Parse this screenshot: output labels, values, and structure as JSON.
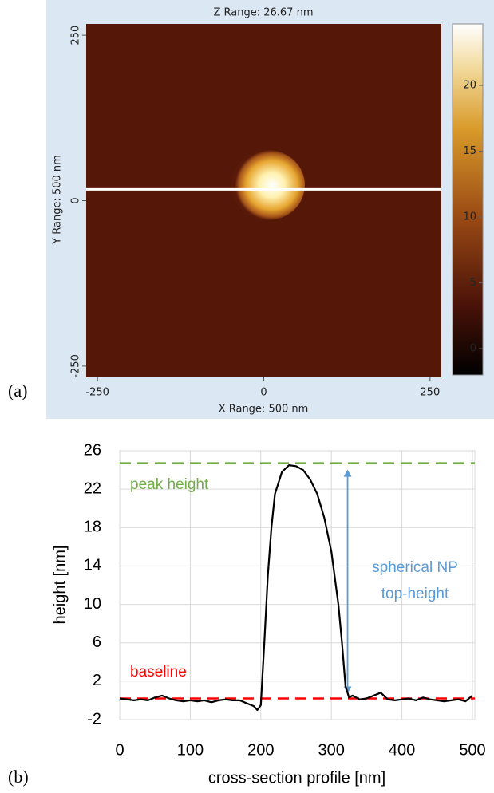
{
  "chart_data": [
    {
      "type": "image",
      "label": "(a)",
      "title": "Z Range:  26.67 nm",
      "xlabel": "X Range: 500 nm",
      "ylabel": "Y Range: 500 nm",
      "xlim": [
        -267,
        267
      ],
      "xticks": [
        -250,
        0,
        250
      ],
      "ylim": [
        -267,
        267
      ],
      "yticks": [
        -250,
        0,
        250
      ],
      "scan_line_y": 17,
      "colorbar": {
        "lim": [
          -2,
          24.67
        ],
        "ticks": [
          0,
          5,
          10,
          15,
          20
        ]
      }
    },
    {
      "type": "line",
      "label": "(b)",
      "xlabel": "cross-section profile [nm]",
      "ylabel": "height [nm]",
      "xlim": [
        0,
        500
      ],
      "xticks": [
        0,
        100,
        200,
        300,
        400,
        500
      ],
      "ylim": [
        -2,
        26
      ],
      "yticks": [
        -2,
        2,
        6,
        10,
        14,
        18,
        22,
        26
      ],
      "grid": true,
      "series": [
        {
          "name": "profile",
          "color": "#000000",
          "x": [
            0,
            10,
            20,
            30,
            40,
            50,
            60,
            70,
            80,
            90,
            100,
            110,
            120,
            130,
            140,
            150,
            160,
            170,
            180,
            190,
            195,
            200,
            205,
            210,
            215,
            220,
            230,
            240,
            250,
            260,
            270,
            280,
            290,
            300,
            310,
            315,
            320,
            325,
            330,
            340,
            350,
            360,
            370,
            380,
            390,
            400,
            410,
            420,
            430,
            440,
            450,
            460,
            470,
            480,
            490,
            500
          ],
          "values": [
            0.2,
            0.1,
            0,
            0.1,
            0,
            0.3,
            0.5,
            0.2,
            0,
            -0.1,
            0,
            -0.1,
            0,
            -0.2,
            0,
            0.1,
            0,
            0,
            -0.3,
            -0.6,
            -1,
            -0.5,
            6,
            13,
            18,
            21.5,
            23.8,
            24.5,
            24.4,
            24,
            23,
            21.5,
            19,
            15.5,
            10,
            6,
            1.5,
            0.3,
            0.5,
            0.1,
            0.2,
            0.5,
            0.8,
            0.1,
            0,
            0.1,
            0.2,
            0,
            0.3,
            0.1,
            0,
            -0.1,
            0,
            0.1,
            -0.1,
            0.5
          ]
        }
      ],
      "reference_lines": [
        {
          "value": 24.7,
          "color": "#70ad47",
          "text": "peak height"
        },
        {
          "value": 0.2,
          "color": "#ff0000",
          "text": "baseline"
        }
      ],
      "arrow": {
        "x": 323,
        "from": 24.7,
        "to": 0.2,
        "color": "#5b9bd5",
        "text": [
          "spherical NP",
          "top-height"
        ]
      }
    }
  ]
}
